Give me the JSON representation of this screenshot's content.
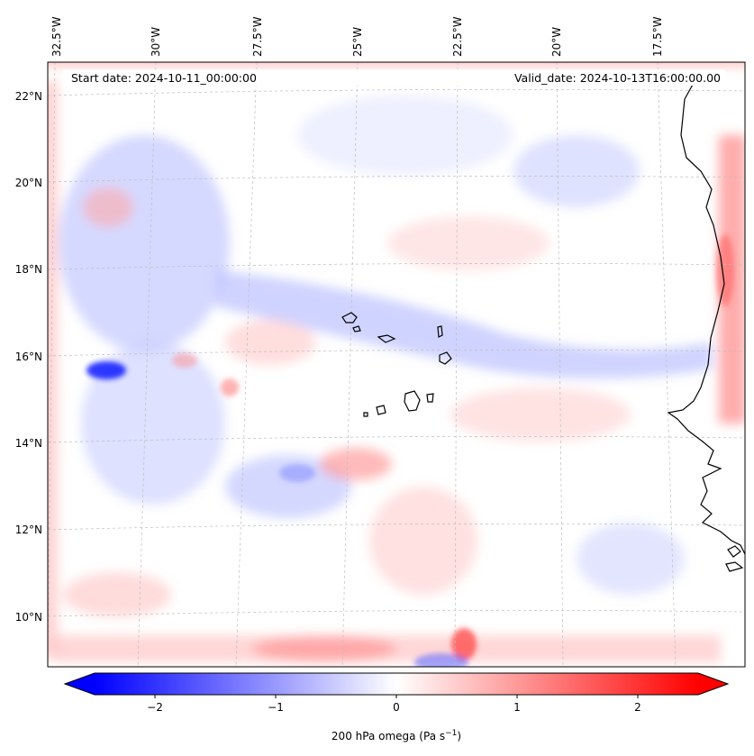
{
  "header": {
    "start_date": "Start date: 2024-10-11_00:00:00",
    "valid_date": "Valid_date: 2024-10-13T16:00:00.00"
  },
  "map": {
    "variable": "200 hPa omega",
    "lon_labels": [
      "32.5°W",
      "30°W",
      "27.5°W",
      "25°W",
      "22.5°W",
      "20°W",
      "17.5°W"
    ],
    "lat_labels": [
      "22°N",
      "20°N",
      "18°N",
      "16°N",
      "14°N",
      "12°N",
      "10°N"
    ],
    "gridlines": true,
    "colormap": {
      "negative": "#0000ff",
      "zero": "#ffffff",
      "positive": "#ff0000"
    }
  },
  "colorbar": {
    "label_text": "200 hPa omega (Pa s",
    "label_exp": "−1",
    "label_close": ")",
    "range": [
      -2.5,
      2.5
    ],
    "ticks": [
      {
        "value": -2,
        "label": "−2"
      },
      {
        "value": -1,
        "label": "−1"
      },
      {
        "value": 0,
        "label": "0"
      },
      {
        "value": 1,
        "label": "1"
      },
      {
        "value": 2,
        "label": "2"
      }
    ],
    "extend": "both"
  }
}
